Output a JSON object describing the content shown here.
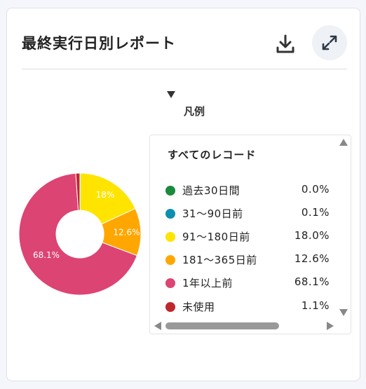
{
  "header": {
    "title": "最終実行日別レポート",
    "download_icon": "download-icon",
    "expand_icon": "expand-icon"
  },
  "legend": {
    "toggle_icon": "triangle-down-icon",
    "title": "凡例",
    "heading": "すべてのレコード",
    "items": [
      {
        "label": "過去30日間",
        "value": "0.0%",
        "color": "#1a8a3c"
      },
      {
        "label": "31〜90日前",
        "value": "0.1%",
        "color": "#0c8fb0"
      },
      {
        "label": "91〜180日前",
        "value": "18.0%",
        "color": "#ffe400"
      },
      {
        "label": "181〜365日前",
        "value": "12.6%",
        "color": "#ffa600"
      },
      {
        "label": "1年以上前",
        "value": "68.1%",
        "color": "#dc4473"
      },
      {
        "label": "未使用",
        "value": "1.1%",
        "color": "#c0272d"
      }
    ]
  },
  "chart_data": {
    "type": "pie",
    "title": "",
    "categories": [
      "過去30日間",
      "31〜90日前",
      "91〜180日前",
      "181〜365日前",
      "1年以上前",
      "未使用"
    ],
    "values": [
      0.0,
      0.1,
      18.0,
      12.6,
      68.1,
      1.1
    ],
    "colors": [
      "#1a8a3c",
      "#0c8fb0",
      "#ffe400",
      "#ffa600",
      "#dc4473",
      "#c0272d"
    ],
    "data_labels": [
      "",
      "",
      "18%",
      "12.6%",
      "68.1%",
      ""
    ],
    "donut": true
  }
}
